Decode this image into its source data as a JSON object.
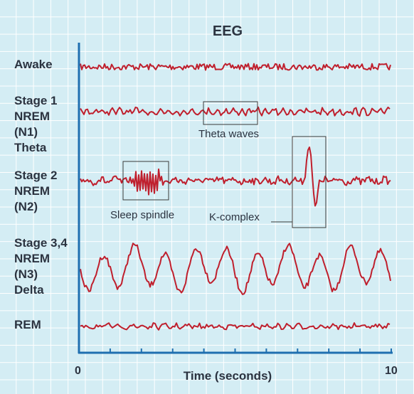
{
  "title": "EEG",
  "x_axis": {
    "label": "Time (seconds)",
    "start_label": "0",
    "end_label": "10"
  },
  "stages": [
    {
      "lines": [
        "Awake"
      ]
    },
    {
      "lines": [
        "Stage 1",
        "NREM",
        "(N1)",
        "Theta"
      ]
    },
    {
      "lines": [
        "Stage 2",
        "NREM",
        "(N2)"
      ]
    },
    {
      "lines": [
        "Stage 3,4",
        "NREM",
        "(N3)",
        "Delta"
      ]
    },
    {
      "lines": [
        "REM"
      ]
    }
  ],
  "annotations": {
    "theta_waves": "Theta waves",
    "sleep_spindle": "Sleep spindle",
    "k_complex": "K-complex"
  },
  "colors": {
    "trace": "#bf1f2d",
    "axis": "#1f6fb0",
    "text": "#2b3340",
    "background": "#d4edf4",
    "grid": "#ffffff"
  }
}
